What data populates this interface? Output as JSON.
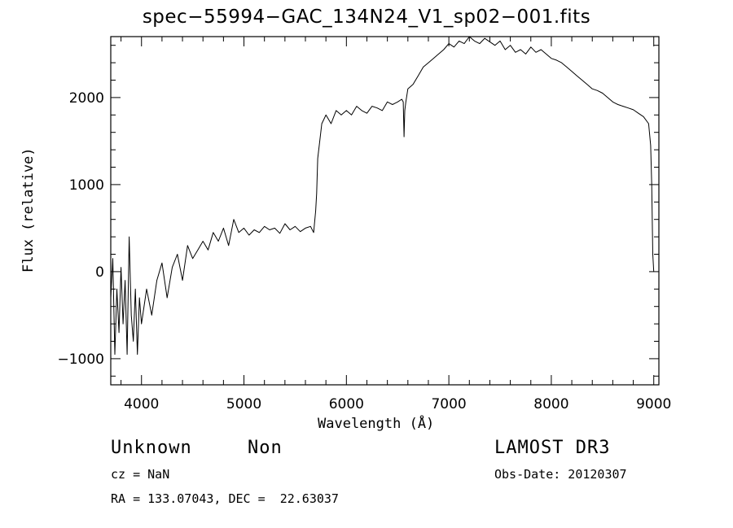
{
  "chart_data": {
    "type": "line",
    "title": "spec−55994−GAC_134N24_V1_sp02−001.fits",
    "xlabel": "Wavelength (Å)",
    "ylabel": "Flux (relative)",
    "xlim": [
      3700,
      9050
    ],
    "ylim": [
      -1300,
      2700
    ],
    "x_ticks": [
      4000,
      5000,
      6000,
      7000,
      8000,
      9000
    ],
    "x_tick_labels": [
      "4000",
      "5000",
      "6000",
      "7000",
      "8000",
      "9000"
    ],
    "y_ticks": [
      -1000,
      0,
      1000,
      2000
    ],
    "y_tick_labels": [
      "−1000",
      "0",
      "1000",
      "2000"
    ],
    "grid": false,
    "line_color": "#000000",
    "series": [
      {
        "x": [
          3700,
          3720,
          3740,
          3760,
          3780,
          3800,
          3820,
          3840,
          3860,
          3880,
          3900,
          3920,
          3940,
          3960,
          3980,
          4000,
          4050,
          4100,
          4150,
          4200,
          4250,
          4300,
          4350,
          4400,
          4450,
          4500,
          4550,
          4600,
          4650,
          4700,
          4750,
          4800,
          4850,
          4900,
          4950,
          5000,
          5050,
          5100,
          5150,
          5200,
          5250,
          5300,
          5350,
          5400,
          5450,
          5500,
          5550,
          5600,
          5650,
          5680,
          5700,
          5710,
          5720,
          5740,
          5760,
          5780,
          5800,
          5850,
          5900,
          5950,
          6000,
          6050,
          6100,
          6150,
          6200,
          6250,
          6300,
          6350,
          6400,
          6450,
          6500,
          6540,
          6555,
          6563,
          6570,
          6580,
          6600,
          6650,
          6700,
          6750,
          6800,
          6850,
          6900,
          6950,
          7000,
          7050,
          7100,
          7150,
          7200,
          7250,
          7300,
          7350,
          7400,
          7450,
          7500,
          7550,
          7600,
          7650,
          7700,
          7750,
          7800,
          7850,
          7900,
          7950,
          8000,
          8050,
          8100,
          8150,
          8200,
          8250,
          8300,
          8350,
          8400,
          8450,
          8500,
          8550,
          8600,
          8650,
          8700,
          8750,
          8800,
          8850,
          8900,
          8950,
          8970,
          8980,
          8990,
          9000
        ],
        "y": [
          -300,
          150,
          -950,
          -200,
          -700,
          50,
          -600,
          -100,
          -950,
          400,
          -500,
          -800,
          -200,
          -950,
          -300,
          -600,
          -200,
          -500,
          -100,
          100,
          -300,
          50,
          200,
          -100,
          300,
          150,
          250,
          350,
          250,
          450,
          350,
          500,
          300,
          600,
          450,
          500,
          420,
          480,
          450,
          520,
          480,
          500,
          440,
          550,
          480,
          520,
          460,
          500,
          520,
          450,
          700,
          900,
          1300,
          1500,
          1700,
          1750,
          1800,
          1700,
          1850,
          1800,
          1850,
          1800,
          1900,
          1850,
          1820,
          1900,
          1880,
          1850,
          1950,
          1920,
          1950,
          1980,
          1950,
          1550,
          1850,
          1950,
          2100,
          2150,
          2250,
          2350,
          2400,
          2450,
          2500,
          2550,
          2620,
          2580,
          2650,
          2620,
          2700,
          2650,
          2620,
          2680,
          2640,
          2600,
          2650,
          2550,
          2600,
          2520,
          2550,
          2500,
          2580,
          2520,
          2550,
          2500,
          2450,
          2430,
          2400,
          2350,
          2300,
          2250,
          2200,
          2150,
          2100,
          2080,
          2050,
          2000,
          1950,
          1920,
          1900,
          1880,
          1860,
          1820,
          1780,
          1700,
          1450,
          1000,
          200,
          0
        ]
      }
    ]
  },
  "annotations": {
    "object_class": "Unknown",
    "object_subclass": "Non",
    "survey": "LAMOST DR3",
    "cz": "cz = NaN",
    "obs_date": "Obs-Date: 20120307",
    "coords": "RA = 133.07043, DEC =  22.63037"
  }
}
